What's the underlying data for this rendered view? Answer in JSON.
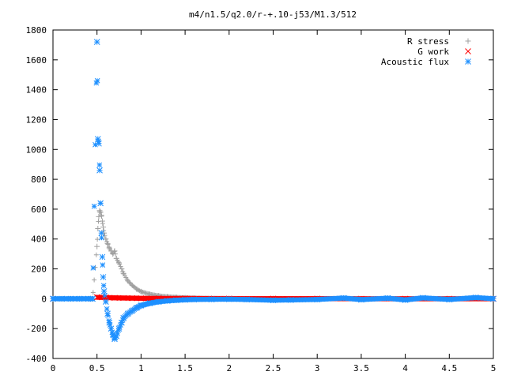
{
  "chart_data": {
    "type": "scatter",
    "title": "m4/n1.5/q2.0/r-+.10-j53/M1.3/512",
    "xlabel": "",
    "ylabel": "",
    "xlim": [
      0,
      5
    ],
    "ylim": [
      -400,
      1800
    ],
    "x_ticks": [
      "0",
      "0.5",
      "1",
      "1.5",
      "2",
      "2.5",
      "3",
      "3.5",
      "4",
      "4.5",
      "5"
    ],
    "y_ticks": [
      "-400",
      "-200",
      "0",
      "200",
      "400",
      "600",
      "800",
      "1000",
      "1200",
      "1400",
      "1600",
      "1800"
    ],
    "grid": false,
    "legend_position": "top-right",
    "series": [
      {
        "name": "R stress",
        "marker": "plus",
        "color": "#a0a0a0",
        "x": [
          0.0,
          0.1,
          0.2,
          0.3,
          0.4,
          0.45,
          0.5,
          0.51,
          0.52,
          0.53,
          0.54,
          0.55,
          0.56,
          0.57,
          0.58,
          0.6,
          0.62,
          0.64,
          0.66,
          0.68,
          0.7,
          0.72,
          0.75,
          0.78,
          0.8,
          0.85,
          0.9,
          0.95,
          1.0,
          1.1,
          1.2,
          1.3,
          1.4,
          1.5,
          1.6,
          1.8,
          2.0,
          2.5,
          3.0,
          3.5,
          4.0,
          4.5,
          5.0
        ],
        "y": [
          0,
          0,
          0,
          0,
          0,
          0,
          350,
          470,
          550,
          590,
          580,
          560,
          520,
          480,
          440,
          400,
          370,
          340,
          320,
          300,
          320,
          270,
          240,
          200,
          170,
          120,
          90,
          65,
          48,
          30,
          20,
          14,
          10,
          7,
          5,
          3,
          2,
          1,
          1,
          0,
          0,
          0,
          0
        ]
      },
      {
        "name": "G work",
        "marker": "cross",
        "color": "#ff0000",
        "x": [
          0.0,
          0.5,
          0.6,
          0.7,
          0.8,
          0.9,
          1.0,
          1.2,
          1.5,
          2.0,
          2.5,
          3.0,
          3.5,
          4.0,
          4.5,
          5.0
        ],
        "y": [
          0,
          10,
          8,
          6,
          5,
          4,
          3,
          2,
          2,
          1,
          1,
          1,
          0,
          0,
          0,
          0
        ],
        "band": {
          "x_start": 0.5,
          "x_end": 5.0,
          "y_low": -15,
          "y_high": 15
        }
      },
      {
        "name": "Acoustic flux",
        "marker": "star",
        "color": "#1e90ff",
        "x": [
          0.0,
          0.1,
          0.2,
          0.3,
          0.4,
          0.45,
          0.5,
          0.51,
          0.52,
          0.53,
          0.54,
          0.55,
          0.56,
          0.57,
          0.58,
          0.6,
          0.62,
          0.64,
          0.66,
          0.68,
          0.7,
          0.72,
          0.75,
          0.78,
          0.8,
          0.85,
          0.9,
          0.95,
          1.0,
          1.1,
          1.2,
          1.3,
          1.4,
          1.5,
          1.6,
          1.8,
          2.0,
          2.2,
          2.5,
          2.7,
          3.0,
          3.3,
          3.5,
          3.8,
          4.0,
          4.2,
          4.5,
          4.8,
          5.0
        ],
        "y": [
          0,
          0,
          0,
          0,
          0,
          0,
          1720,
          1070,
          1040,
          860,
          640,
          440,
          280,
          145,
          50,
          -20,
          -100,
          -160,
          -200,
          -240,
          -270,
          -250,
          -200,
          -160,
          -130,
          -100,
          -80,
          -60,
          -45,
          -30,
          -20,
          -14,
          -10,
          -7,
          -5,
          -4,
          -3,
          -5,
          -10,
          -8,
          -5,
          5,
          -6,
          4,
          -8,
          6,
          -5,
          8,
          0
        ]
      }
    ]
  }
}
